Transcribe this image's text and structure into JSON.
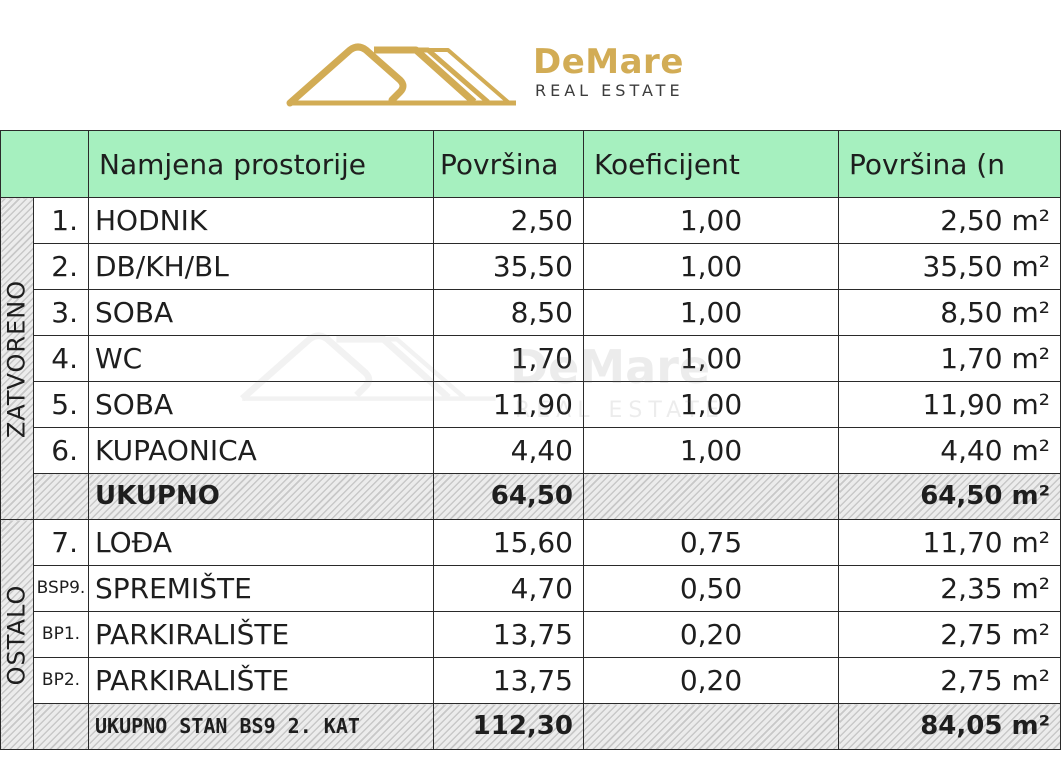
{
  "logo": {
    "name": "DeMare",
    "subtitle": "REAL ESTATE",
    "icon": "mountain-roof-logo",
    "color": "#d2ac55"
  },
  "table": {
    "headers": [
      "",
      "Namjena prostorije",
      "Površina",
      "Koeficijent",
      "Površina (n"
    ],
    "group_closed": "ZATVORENO",
    "group_other": "OSTALO",
    "rows_closed": [
      {
        "idx": "1.",
        "name": "HODNIK",
        "area": "2,50",
        "coef": "1,00",
        "net": "2,50 m²"
      },
      {
        "idx": "2.",
        "name": "DB/KH/BL",
        "area": "35,50",
        "coef": "1,00",
        "net": "35,50 m²"
      },
      {
        "idx": "3.",
        "name": "SOBA",
        "area": "8,50",
        "coef": "1,00",
        "net": "8,50 m²"
      },
      {
        "idx": "4.",
        "name": "WC",
        "area": "1,70",
        "coef": "1,00",
        "net": "1,70 m²"
      },
      {
        "idx": "5.",
        "name": "SOBA",
        "area": "11,90",
        "coef": "1,00",
        "net": "11,90 m²"
      },
      {
        "idx": "6.",
        "name": "KUPAONICA",
        "area": "4,40",
        "coef": "1,00",
        "net": "4,40 m²"
      }
    ],
    "subtotal": {
      "label": "UKUPNO",
      "area": "64,50",
      "net": "64,50 m²"
    },
    "rows_other": [
      {
        "idx": "7.",
        "name": "LOĐA",
        "area": "15,60",
        "coef": "0,75",
        "net": "11,70 m²"
      },
      {
        "idx": "BSP9.",
        "name": "SPREMIŠTE",
        "area": "4,70",
        "coef": "0,50",
        "net": "2,35 m²"
      },
      {
        "idx": "BP1.",
        "name": "PARKIRALIŠTE",
        "area": "13,75",
        "coef": "0,20",
        "net": "2,75 m²"
      },
      {
        "idx": "BP2.",
        "name": "PARKIRALIŠTE",
        "area": "13,75",
        "coef": "0,20",
        "net": "2,75 m²"
      }
    ],
    "grand_total": {
      "label": "UKUPNO STAN BS9 2. KAT",
      "area": "112,30",
      "net": "84,05 m²"
    }
  },
  "watermark": {
    "name": "DeMare",
    "subtitle": "REAL ESTATE"
  }
}
